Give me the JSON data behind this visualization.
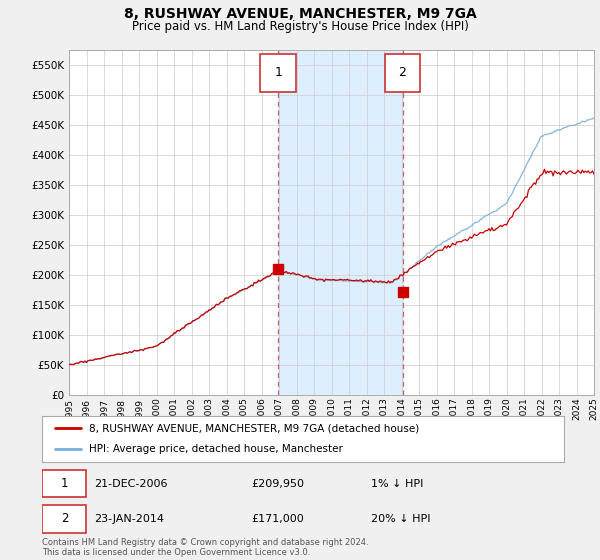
{
  "title": "8, RUSHWAY AVENUE, MANCHESTER, M9 7GA",
  "subtitle": "Price paid vs. HM Land Registry's House Price Index (HPI)",
  "legend_line1": "8, RUSHWAY AVENUE, MANCHESTER, M9 7GA (detached house)",
  "legend_line2": "HPI: Average price, detached house, Manchester",
  "annotation1_label": "1",
  "annotation1_date": "21-DEC-2006",
  "annotation1_price": "£209,950",
  "annotation1_hpi": "1% ↓ HPI",
  "annotation2_label": "2",
  "annotation2_date": "23-JAN-2014",
  "annotation2_price": "£171,000",
  "annotation2_hpi": "20% ↓ HPI",
  "footnote": "Contains HM Land Registry data © Crown copyright and database right 2024.\nThis data is licensed under the Open Government Licence v3.0.",
  "house_color": "#cc0000",
  "hpi_color": "#7aaddb",
  "highlight_color": "#ddeeff",
  "dashed_line_color": "#cc6666",
  "ylim": [
    0,
    575000
  ],
  "yticks": [
    0,
    50000,
    100000,
    150000,
    200000,
    250000,
    300000,
    350000,
    400000,
    450000,
    500000,
    550000
  ],
  "ytick_labels": [
    "£0",
    "£50K",
    "£100K",
    "£150K",
    "£200K",
    "£250K",
    "£300K",
    "£350K",
    "£400K",
    "£450K",
    "£500K",
    "£550K"
  ],
  "background_color": "#f0f0f0",
  "plot_bg_color": "#ffffff",
  "sale1_x": 2006.96,
  "sale1_y": 209950,
  "sale2_x": 2014.06,
  "sale2_y": 171000,
  "xmin": 1995,
  "xmax": 2025
}
